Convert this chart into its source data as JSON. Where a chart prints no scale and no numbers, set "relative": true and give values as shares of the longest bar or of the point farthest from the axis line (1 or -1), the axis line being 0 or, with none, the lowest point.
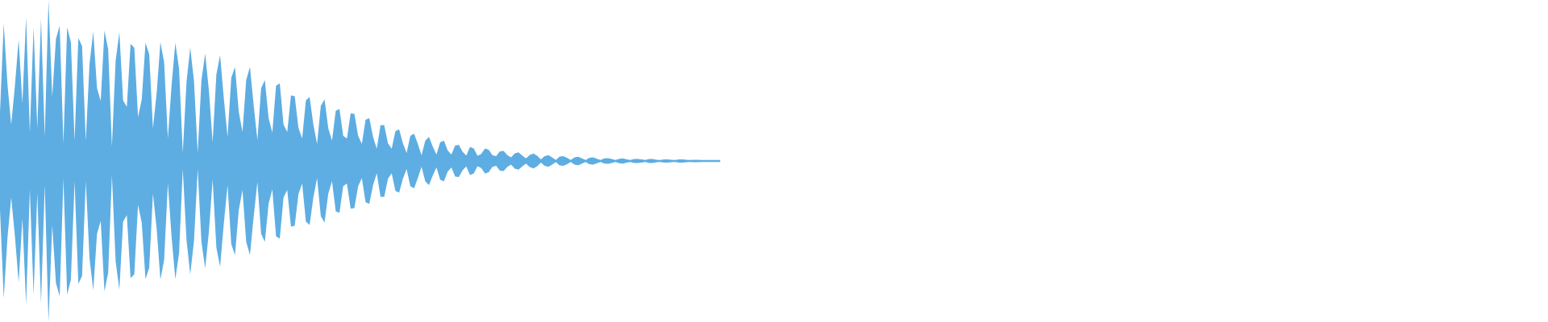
{
  "chart_data": {
    "type": "area",
    "relative": true,
    "categories": [
      null,
      null,
      null,
      null,
      null,
      null,
      null,
      null,
      null,
      null,
      null,
      null,
      null,
      null,
      null,
      null,
      null,
      null,
      null,
      null,
      null,
      null,
      null,
      null,
      null,
      null,
      null,
      null,
      null,
      null,
      null,
      null,
      null,
      null,
      null,
      null,
      null,
      null,
      null,
      null,
      null,
      null,
      null,
      null,
      null,
      null,
      null,
      null,
      null,
      null,
      null,
      null,
      null,
      null,
      null,
      null,
      null,
      null,
      null,
      null,
      null,
      null,
      null,
      null,
      null,
      null,
      null,
      null,
      null,
      null,
      null,
      null,
      null,
      null,
      null,
      null,
      null,
      null,
      null,
      null,
      null,
      null,
      null,
      null,
      null,
      null,
      null,
      null,
      null,
      null,
      null,
      null,
      null,
      null,
      null,
      null,
      null,
      null,
      null,
      null,
      null,
      null,
      null,
      null,
      null,
      null,
      null,
      null,
      null,
      null,
      null,
      null,
      null,
      null,
      null,
      null,
      null,
      null,
      null,
      null,
      null,
      null,
      null,
      null,
      null,
      null,
      null,
      null,
      null,
      null,
      null,
      null,
      null,
      null,
      null,
      null,
      null,
      null,
      null,
      null,
      null,
      null,
      null,
      null,
      null,
      null,
      null,
      null,
      null,
      null,
      null,
      null,
      null,
      null,
      null,
      null,
      null,
      null,
      null,
      null,
      null,
      null,
      null,
      null,
      null,
      null,
      null,
      null,
      null,
      null,
      null,
      null,
      null,
      null,
      null,
      null,
      null,
      null,
      null,
      null,
      null,
      null,
      null,
      null,
      null,
      null,
      null,
      null,
      null,
      null,
      null,
      null,
      null,
      null
    ],
    "series": [
      {
        "color": "#5dade2",
        "values": [
          0.302,
          0.854,
          0.478,
          0.226,
          0.468,
          0.754,
          0.356,
          0.894,
          0.176,
          0.83,
          0.202,
          0.884,
          0.15,
          1.0,
          0.398,
          0.758,
          0.84,
          0.11,
          0.83,
          0.738,
          0.126,
          0.764,
          0.714,
          0.126,
          0.604,
          0.804,
          0.452,
          0.372,
          0.81,
          0.694,
          0.09,
          0.624,
          0.8,
          0.376,
          0.336,
          0.728,
          0.704,
          0.272,
          0.382,
          0.734,
          0.664,
          0.202,
          0.422,
          0.738,
          0.614,
          0.14,
          0.472,
          0.734,
          0.572,
          0.05,
          0.492,
          0.704,
          0.498,
          0.05,
          0.502,
          0.668,
          0.438,
          0.116,
          0.538,
          0.658,
          0.388,
          0.15,
          0.518,
          0.584,
          0.306,
          0.18,
          0.502,
          0.584,
          0.346,
          0.13,
          0.452,
          0.502,
          0.266,
          0.176,
          0.468,
          0.482,
          0.226,
          0.18,
          0.408,
          0.402,
          0.206,
          0.14,
          0.376,
          0.398,
          0.226,
          0.106,
          0.342,
          0.382,
          0.202,
          0.126,
          0.312,
          0.322,
          0.156,
          0.14,
          0.296,
          0.292,
          0.156,
          0.106,
          0.256,
          0.266,
          0.15,
          0.076,
          0.222,
          0.222,
          0.11,
          0.076,
          0.186,
          0.196,
          0.11,
          0.05,
          0.156,
          0.17,
          0.106,
          0.036,
          0.126,
          0.15,
          0.09,
          0.04,
          0.116,
          0.126,
          0.066,
          0.04,
          0.096,
          0.1,
          0.058,
          0.034,
          0.088,
          0.078,
          0.032,
          0.044,
          0.078,
          0.07,
          0.036,
          0.03,
          0.06,
          0.062,
          0.036,
          0.022,
          0.048,
          0.054,
          0.034,
          0.016,
          0.038,
          0.046,
          0.032,
          0.01,
          0.03,
          0.036,
          0.022,
          0.006,
          0.028,
          0.03,
          0.02,
          0.006,
          0.022,
          0.026,
          0.016,
          0.006,
          0.02,
          0.022,
          0.014,
          0.006,
          0.016,
          0.018,
          0.012,
          0.006,
          0.014,
          0.016,
          0.01,
          0.006,
          0.012,
          0.012,
          0.01,
          0.006,
          0.012,
          0.012,
          0.008,
          0.006,
          0.01,
          0.01,
          0.008,
          0.006,
          0.01,
          0.01,
          0.008,
          0.006,
          0.008,
          0.008,
          0.006,
          0.006,
          0.006,
          0.006,
          0.006,
          0.006
        ]
      },
      {
        "color": "#5eaee3",
        "values": [
          -0.302,
          -0.854,
          -0.478,
          -0.226,
          -0.468,
          -0.754,
          -0.356,
          -0.894,
          -0.176,
          -0.83,
          -0.202,
          -0.884,
          -0.15,
          -1.0,
          -0.398,
          -0.758,
          -0.84,
          -0.11,
          -0.83,
          -0.738,
          -0.126,
          -0.764,
          -0.714,
          -0.126,
          -0.604,
          -0.804,
          -0.452,
          -0.372,
          -0.81,
          -0.694,
          -0.09,
          -0.624,
          -0.8,
          -0.376,
          -0.336,
          -0.728,
          -0.704,
          -0.272,
          -0.382,
          -0.734,
          -0.664,
          -0.202,
          -0.422,
          -0.738,
          -0.614,
          -0.14,
          -0.472,
          -0.734,
          -0.572,
          -0.05,
          -0.492,
          -0.704,
          -0.498,
          -0.05,
          -0.502,
          -0.668,
          -0.438,
          -0.116,
          -0.538,
          -0.658,
          -0.388,
          -0.15,
          -0.518,
          -0.584,
          -0.306,
          -0.18,
          -0.502,
          -0.584,
          -0.346,
          -0.13,
          -0.452,
          -0.502,
          -0.266,
          -0.176,
          -0.468,
          -0.482,
          -0.226,
          -0.18,
          -0.408,
          -0.402,
          -0.206,
          -0.14,
          -0.376,
          -0.398,
          -0.226,
          -0.106,
          -0.342,
          -0.382,
          -0.202,
          -0.126,
          -0.312,
          -0.322,
          -0.156,
          -0.14,
          -0.296,
          -0.292,
          -0.156,
          -0.106,
          -0.256,
          -0.266,
          -0.15,
          -0.076,
          -0.222,
          -0.222,
          -0.11,
          -0.076,
          -0.186,
          -0.196,
          -0.11,
          -0.05,
          -0.156,
          -0.17,
          -0.106,
          -0.036,
          -0.126,
          -0.15,
          -0.09,
          -0.04,
          -0.116,
          -0.126,
          -0.066,
          -0.04,
          -0.096,
          -0.1,
          -0.058,
          -0.034,
          -0.088,
          -0.078,
          -0.032,
          -0.044,
          -0.078,
          -0.07,
          -0.036,
          -0.03,
          -0.06,
          -0.062,
          -0.036,
          -0.022,
          -0.048,
          -0.054,
          -0.034,
          -0.016,
          -0.038,
          -0.046,
          -0.032,
          -0.01,
          -0.03,
          -0.036,
          -0.022,
          -0.006,
          -0.028,
          -0.03,
          -0.02,
          -0.006,
          -0.022,
          -0.026,
          -0.016,
          -0.006,
          -0.02,
          -0.022,
          -0.014,
          -0.006,
          -0.016,
          -0.018,
          -0.012,
          -0.006,
          -0.014,
          -0.016,
          -0.01,
          -0.006,
          -0.012,
          -0.012,
          -0.01,
          -0.006,
          -0.012,
          -0.012,
          -0.008,
          -0.006,
          -0.01,
          -0.01,
          -0.008,
          -0.006,
          -0.01,
          -0.01,
          -0.008,
          -0.006,
          -0.008,
          -0.008,
          -0.006,
          -0.006,
          -0.006,
          -0.006,
          -0.006,
          -0.006
        ]
      }
    ]
  }
}
